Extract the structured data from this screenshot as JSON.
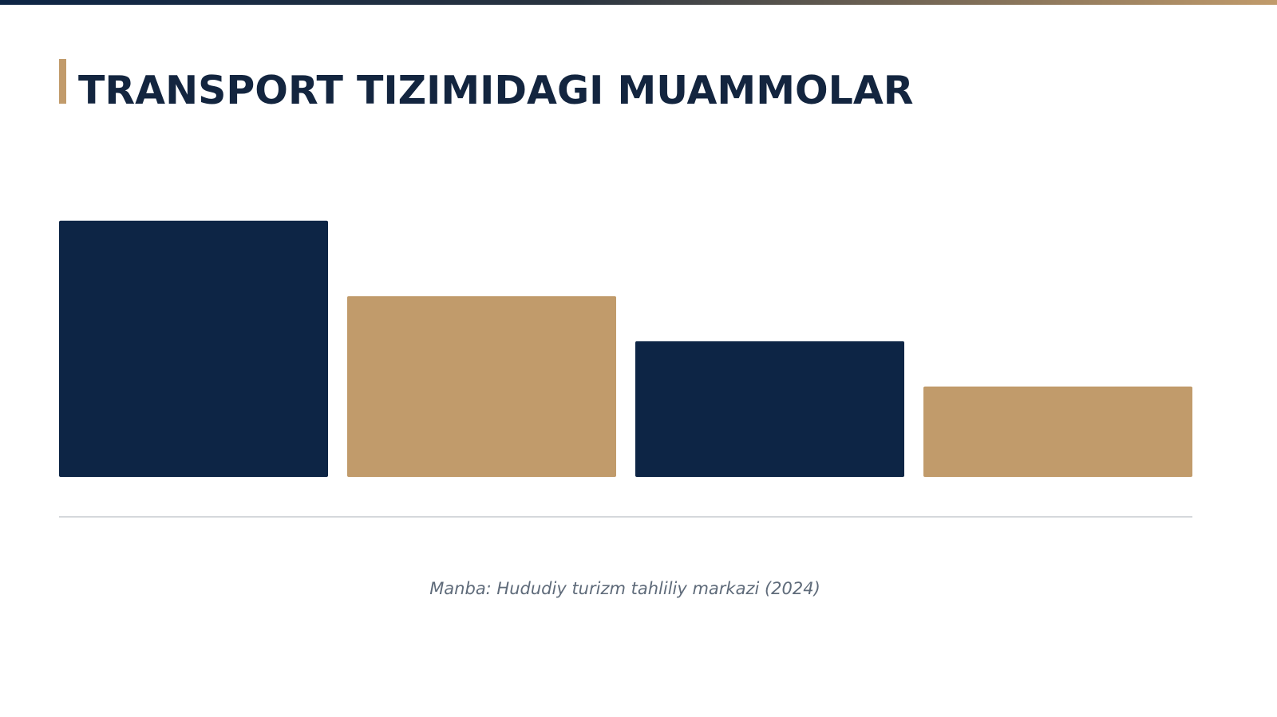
{
  "chart_data": {
    "type": "bar",
    "title": "TRANSPORT TIZIMIDAGI MUAMMOLAR",
    "categories": [
      null,
      null,
      null,
      null
    ],
    "values": [
      85,
      60,
      45,
      30
    ],
    "colors": [
      "#0d2545",
      "#c19b6b",
      "#0d2545",
      "#c19b6b"
    ],
    "ylim": [
      0,
      100
    ],
    "source": "Manba: Hududiy turizm tahliliy markazi (2024)"
  }
}
